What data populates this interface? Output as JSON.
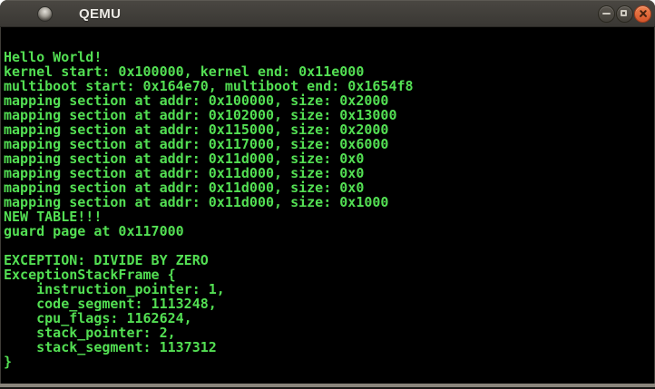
{
  "window": {
    "title": "QEMU"
  },
  "titlebar": {
    "icons": {
      "app_icon": "qemu-window-icon",
      "minimize": "minus-glyph",
      "maximize": "square-glyph",
      "close": "cross-glyph"
    }
  },
  "theme": {
    "titlebar_top": "#4a4742",
    "titlebar_bottom": "#393733",
    "title_text": "#eceae5",
    "close_orange_top": "#ef824f",
    "close_orange_bottom": "#d4552a",
    "console_green": "#53df53",
    "screen_bg": "#000000",
    "bottom_edge": "#8a857c"
  },
  "console": {
    "lines": [
      "Hello World!",
      "kernel start: 0x100000, kernel end: 0x11e000",
      "multiboot start: 0x164e70, multiboot end: 0x1654f8",
      "mapping section at addr: 0x100000, size: 0x2000",
      "mapping section at addr: 0x102000, size: 0x13000",
      "mapping section at addr: 0x115000, size: 0x2000",
      "mapping section at addr: 0x117000, size: 0x6000",
      "mapping section at addr: 0x11d000, size: 0x0",
      "mapping section at addr: 0x11d000, size: 0x0",
      "mapping section at addr: 0x11d000, size: 0x0",
      "mapping section at addr: 0x11d000, size: 0x1000",
      "NEW TABLE!!!",
      "guard page at 0x117000",
      "",
      "EXCEPTION: DIVIDE BY ZERO",
      "ExceptionStackFrame {",
      "    instruction_pointer: 1,",
      "    code_segment: 1113248,",
      "    cpu_flags: 1162624,",
      "    stack_pointer: 2,",
      "    stack_segment: 1137312",
      "}"
    ]
  }
}
